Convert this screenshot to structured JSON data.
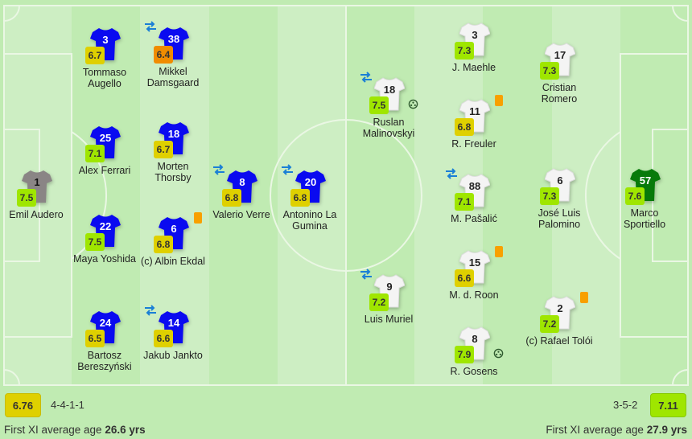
{
  "colors": {
    "rating_orange": "#f08c00",
    "rating_yellow": "#dfd000",
    "rating_lime": "#9fe600",
    "home_shirt": "#0a0af0",
    "home_gk_shirt": "#8a8585",
    "away_shirt": "#f4f4f4",
    "away_gk_shirt": "#087a0a",
    "card": "#f8a000",
    "sub_icon": "#1a7fd6"
  },
  "home": {
    "team_rating": "6.76",
    "formation": "4-4-1-1",
    "age_label": "First XI average age",
    "age_value": "26.6 yrs",
    "players": [
      {
        "number": "1",
        "name": "Emil Audero",
        "rating": "7.5",
        "color": "#9fe600",
        "gk": true
      },
      {
        "number": "3",
        "name": "Tommaso Augello",
        "rating": "6.7",
        "color": "#dfd000"
      },
      {
        "number": "38",
        "name": "Mikkel Damsgaard",
        "rating": "6.4",
        "color": "#f08c00",
        "sub": true
      },
      {
        "number": "25",
        "name": "Alex Ferrari",
        "rating": "7.1",
        "color": "#9fe600"
      },
      {
        "number": "18",
        "name": "Morten Thorsby",
        "rating": "6.7",
        "color": "#dfd000"
      },
      {
        "number": "8",
        "name": "Valerio Verre",
        "rating": "6.8",
        "color": "#dfd000",
        "sub": true
      },
      {
        "number": "20",
        "name": "Antonino La Gumina",
        "rating": "6.8",
        "color": "#dfd000",
        "sub": true
      },
      {
        "number": "22",
        "name": "Maya Yoshida",
        "rating": "7.5",
        "color": "#9fe600"
      },
      {
        "number": "6",
        "name": "(c) Albin Ekdal",
        "rating": "6.8",
        "color": "#dfd000",
        "card": true
      },
      {
        "number": "24",
        "name": "Bartosz Bereszyński",
        "rating": "6.5",
        "color": "#dfd000"
      },
      {
        "number": "14",
        "name": "Jakub Jankto",
        "rating": "6.6",
        "color": "#dfd000",
        "sub": true
      }
    ]
  },
  "away": {
    "team_rating": "7.11",
    "formation": "3-5-2",
    "age_label": "First XI average age",
    "age_value": "27.9 yrs",
    "players": [
      {
        "number": "18",
        "name": "Ruslan Malinovskyi",
        "rating": "7.5",
        "color": "#9fe600",
        "sub": true,
        "goal": true
      },
      {
        "number": "9",
        "name": "Luis Muriel",
        "rating": "7.2",
        "color": "#9fe600",
        "sub": true
      },
      {
        "number": "3",
        "name": "J. Maehle",
        "rating": "7.3",
        "color": "#9fe600"
      },
      {
        "number": "11",
        "name": "R. Freuler",
        "rating": "6.8",
        "color": "#dfd000",
        "card": true
      },
      {
        "number": "88",
        "name": "M. Pašalić",
        "rating": "7.1",
        "color": "#9fe600",
        "sub": true
      },
      {
        "number": "15",
        "name": "M. d. Roon",
        "rating": "6.6",
        "color": "#dfd000",
        "card": true
      },
      {
        "number": "8",
        "name": "R. Gosens",
        "rating": "7.9",
        "color": "#9fe600",
        "goal": true
      },
      {
        "number": "17",
        "name": "Cristian Romero",
        "rating": "7.3",
        "color": "#9fe600"
      },
      {
        "number": "6",
        "name": "José Luis Palomino",
        "rating": "7.3",
        "color": "#9fe600"
      },
      {
        "number": "2",
        "name": "(c) Rafael Tolói",
        "rating": "7.2",
        "color": "#9fe600",
        "card": true
      },
      {
        "number": "57",
        "name": "Marco Sportiello",
        "rating": "7.6",
        "color": "#9fe600",
        "gk": true
      }
    ]
  }
}
